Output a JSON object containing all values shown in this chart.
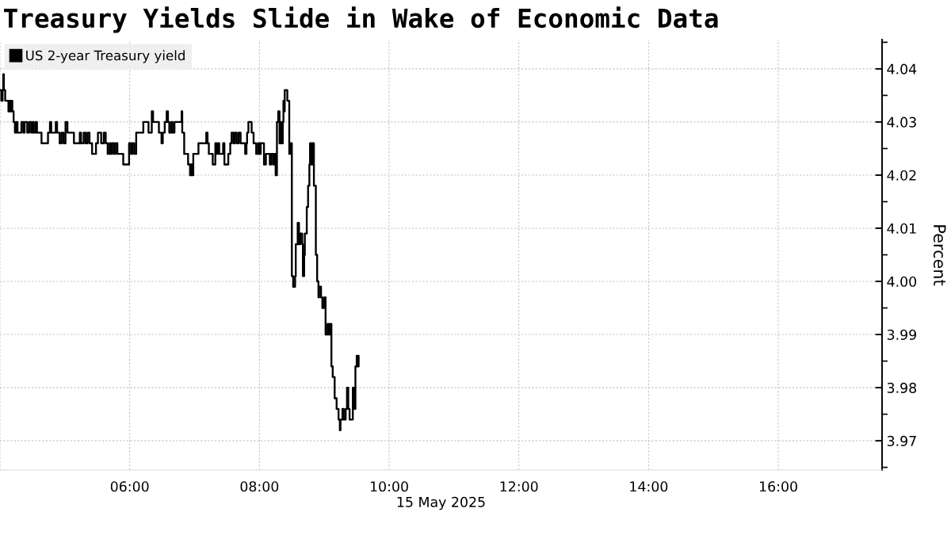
{
  "chart_data": {
    "type": "step",
    "title": "Treasury Yields Slide in Wake of Economic Data",
    "xlabel": "15 May 2025",
    "ylabel": "Percent",
    "x": [
      4.0,
      4.02,
      4.04,
      4.05,
      4.06,
      4.08,
      4.13,
      4.14,
      4.16,
      4.17,
      4.19,
      4.21,
      4.23,
      4.25,
      4.27,
      4.33,
      4.36,
      4.38,
      4.42,
      4.45,
      4.48,
      4.5,
      4.52,
      4.55,
      4.57,
      4.64,
      4.74,
      4.77,
      4.79,
      4.86,
      4.88,
      4.92,
      4.95,
      4.98,
      5.01,
      5.04,
      5.14,
      5.23,
      5.25,
      5.29,
      5.32,
      5.35,
      5.38,
      5.42,
      5.48,
      5.51,
      5.56,
      5.6,
      5.63,
      5.66,
      5.69,
      5.71,
      5.73,
      5.76,
      5.78,
      5.81,
      5.9,
      5.99,
      6.02,
      6.04,
      6.07,
      6.1,
      6.21,
      6.29,
      6.34,
      6.36,
      6.45,
      6.49,
      6.51,
      6.54,
      6.57,
      6.59,
      6.61,
      6.64,
      6.66,
      6.69,
      6.8,
      6.81,
      6.84,
      6.9,
      6.93,
      6.94,
      6.96,
      6.98,
      7.06,
      7.18,
      7.2,
      7.22,
      7.28,
      7.32,
      7.34,
      7.36,
      7.38,
      7.44,
      7.46,
      7.52,
      7.55,
      7.57,
      7.6,
      7.62,
      7.65,
      7.68,
      7.71,
      7.78,
      7.8,
      7.81,
      7.83,
      7.88,
      7.91,
      7.95,
      7.98,
      8.0,
      8.02,
      8.07,
      8.1,
      8.16,
      8.18,
      8.21,
      8.23,
      8.25,
      8.27,
      8.29,
      8.31,
      8.33,
      8.34,
      8.36,
      8.37,
      8.38,
      8.39,
      8.43,
      8.46,
      8.48,
      8.5,
      8.52,
      8.55,
      8.56,
      8.59,
      8.61,
      8.63,
      8.66,
      8.67,
      8.69,
      8.7,
      8.73,
      8.75,
      8.77,
      8.78,
      8.8,
      8.82,
      8.84,
      8.87,
      8.89,
      8.91,
      8.92,
      8.95,
      8.97,
      9.0,
      9.02,
      9.05,
      9.07,
      9.09,
      9.11,
      9.13,
      9.16,
      9.19,
      9.22,
      9.24,
      9.25,
      9.28,
      9.3,
      9.33,
      9.35,
      9.37,
      9.39,
      9.44,
      9.46,
      9.48,
      9.5,
      9.52,
      9.53
    ],
    "series": [
      {
        "name": "US 2-year Treasury yield",
        "color": "#000000",
        "values": [
          4.036,
          4.034,
          4.036,
          4.039,
          4.036,
          4.034,
          4.032,
          4.034,
          4.032,
          4.034,
          4.032,
          4.03,
          4.028,
          4.03,
          4.028,
          4.03,
          4.028,
          4.03,
          4.028,
          4.03,
          4.028,
          4.03,
          4.028,
          4.03,
          4.028,
          4.026,
          4.028,
          4.03,
          4.028,
          4.03,
          4.028,
          4.026,
          4.028,
          4.026,
          4.03,
          4.028,
          4.026,
          4.028,
          4.026,
          4.028,
          4.026,
          4.028,
          4.026,
          4.024,
          4.026,
          4.028,
          4.026,
          4.028,
          4.026,
          4.024,
          4.026,
          4.024,
          4.026,
          4.024,
          4.026,
          4.024,
          4.022,
          4.026,
          4.024,
          4.026,
          4.024,
          4.028,
          4.03,
          4.028,
          4.032,
          4.03,
          4.028,
          4.026,
          4.028,
          4.03,
          4.032,
          4.03,
          4.028,
          4.03,
          4.028,
          4.03,
          4.032,
          4.028,
          4.024,
          4.022,
          4.02,
          4.022,
          4.02,
          4.024,
          4.026,
          4.028,
          4.026,
          4.024,
          4.022,
          4.026,
          4.024,
          4.026,
          4.024,
          4.026,
          4.022,
          4.024,
          4.026,
          4.028,
          4.026,
          4.028,
          4.026,
          4.028,
          4.026,
          4.024,
          4.026,
          4.028,
          4.03,
          4.028,
          4.026,
          4.024,
          4.026,
          4.024,
          4.026,
          4.022,
          4.024,
          4.022,
          4.024,
          4.022,
          4.024,
          4.02,
          4.03,
          4.032,
          4.026,
          4.03,
          4.026,
          4.03,
          4.034,
          4.032,
          4.036,
          4.034,
          4.024,
          4.026,
          4.001,
          3.999,
          4.001,
          4.007,
          4.011,
          4.007,
          4.009,
          4.007,
          4.001,
          4.005,
          4.009,
          4.014,
          4.018,
          4.022,
          4.026,
          4.022,
          4.026,
          4.018,
          4.005,
          4.0,
          3.997,
          3.999,
          3.997,
          3.995,
          3.997,
          3.99,
          3.992,
          3.99,
          3.992,
          3.984,
          3.982,
          3.978,
          3.976,
          3.974,
          3.972,
          3.974,
          3.976,
          3.974,
          3.976,
          3.98,
          3.976,
          3.974,
          3.98,
          3.976,
          3.984,
          3.986,
          3.984,
          3.986
        ]
      }
    ],
    "xlim": [
      4.0,
      17.6
    ],
    "xticks": [
      {
        "value": 4,
        "label": null
      },
      {
        "value": 6,
        "label": "06:00"
      },
      {
        "value": 8,
        "label": "08:00"
      },
      {
        "value": 10,
        "label": "10:00"
      },
      {
        "value": 12,
        "label": "12:00"
      },
      {
        "value": 14,
        "label": "14:00"
      },
      {
        "value": 16,
        "label": "16:00"
      }
    ],
    "ylim": [
      3.9645,
      4.0455
    ],
    "yticks": [
      3.97,
      3.98,
      3.99,
      {
        "value": 4.0,
        "label": "4.00"
      },
      4.01,
      4.02,
      4.03,
      4.04
    ],
    "grid": true,
    "legend": "top left"
  }
}
